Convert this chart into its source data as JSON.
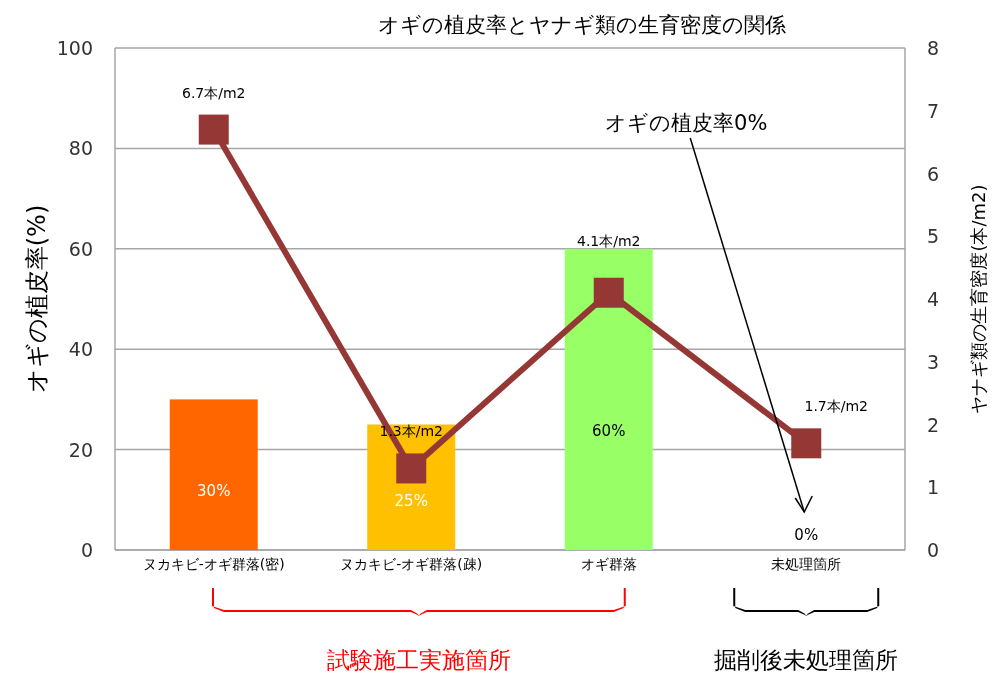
{
  "chart_data": {
    "type": "bar",
    "title": "オギの植皮率とヤナギ類の生育密度の関係",
    "ylabel": "オギの植皮率(%)",
    "y2label": "ヤナギ類の生育密度(本/m2)",
    "categories": [
      "ヌカキビ-オギ群落(密)",
      "ヌカキビ-オギ群落(疎)",
      "オギ群落",
      "未処理箇所"
    ],
    "series": [
      {
        "colors": [
          "#ff6600",
          "#ffc000",
          "#99ff66",
          "#99ff66"
        ],
        "values": [
          30,
          25,
          60,
          0
        ],
        "value_labels": [
          "30%",
          "25%",
          "60%",
          "0%"
        ]
      },
      {
        "type": "line",
        "axis": "y2",
        "color": "#953735",
        "values": [
          6.7,
          1.3,
          4.1,
          1.7
        ],
        "value_labels": [
          "6.7本/m2",
          "1.3本/m2",
          "4.1本/m2",
          "1.7本/m2"
        ]
      }
    ],
    "ylim": [
      0,
      100
    ],
    "yticks": [
      0,
      20,
      40,
      60,
      80,
      100
    ],
    "y2lim": [
      0,
      8
    ],
    "y2ticks": [
      0,
      1,
      2,
      3,
      4,
      5,
      6,
      7,
      8
    ],
    "grid": "y",
    "marker": "square",
    "line_style": "solid",
    "annotations": [
      "オギの植皮率0%",
      "試験施工実施箇所",
      "掘削後未処理箇所"
    ]
  }
}
